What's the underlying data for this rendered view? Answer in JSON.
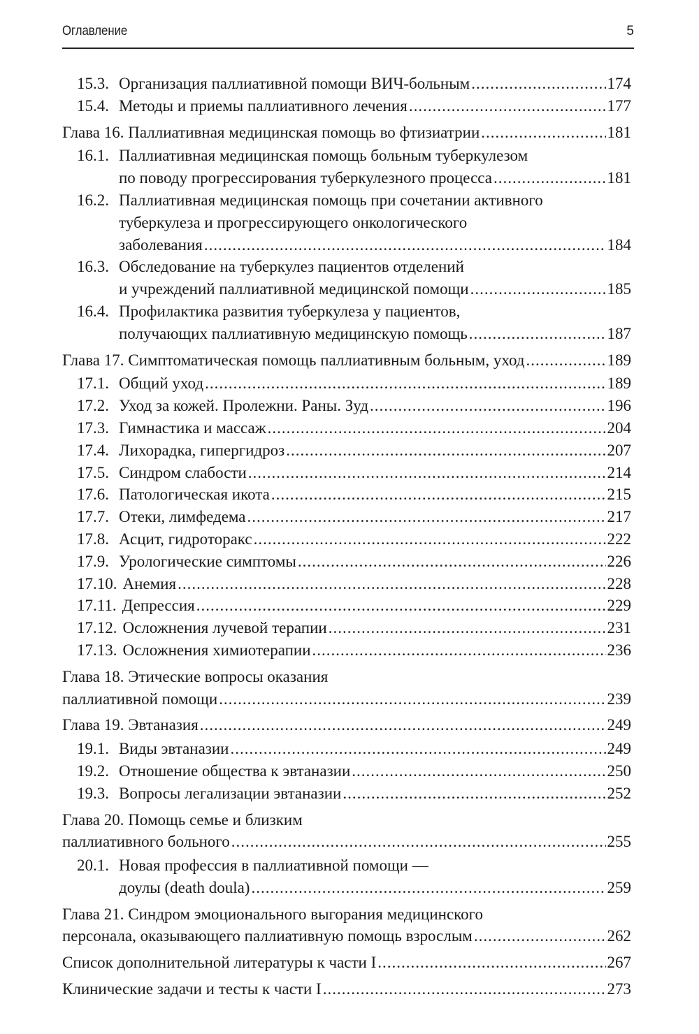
{
  "header": {
    "title": "Оглавление",
    "page_number": "5"
  },
  "entries": [
    {
      "type": "sub",
      "num": "15.3.",
      "lines": [
        "Организация паллиативной помощи ВИЧ-больным"
      ],
      "page": "174"
    },
    {
      "type": "sub",
      "num": "15.4.",
      "lines": [
        "Методы и приемы паллиативного лечения"
      ],
      "page": "177"
    },
    {
      "type": "chapter",
      "lines": [
        "Глава 16. Паллиативная медицинская помощь во фтизиатрии"
      ],
      "page": "181"
    },
    {
      "type": "sub",
      "num": "16.1.",
      "lines": [
        "Паллиативная медицинская помощь больным туберкулезом",
        "по поводу прогрессирования туберкулезного процесса"
      ],
      "page": "181"
    },
    {
      "type": "sub",
      "num": "16.2.",
      "lines": [
        "Паллиативная медицинская помощь при сочетании активного",
        "туберкулеза и прогрессирующего онкологического",
        "заболевания"
      ],
      "page": "184"
    },
    {
      "type": "sub",
      "num": "16.3.",
      "lines": [
        "Обследование на туберкулез пациентов отделений",
        "и учреждений паллиативной медицинской помощи"
      ],
      "page": "185"
    },
    {
      "type": "sub",
      "num": "16.4.",
      "lines": [
        "Профилактика развития туберкулеза у пациентов,",
        "получающих паллиативную медицинскую помощь"
      ],
      "page": "187"
    },
    {
      "type": "chapter",
      "lines": [
        "Глава 17. Симптоматическая помощь паллиативным больным, уход"
      ],
      "page": "189"
    },
    {
      "type": "sub",
      "num": "17.1.",
      "lines": [
        "Общий уход"
      ],
      "page": "189"
    },
    {
      "type": "sub",
      "num": "17.2.",
      "lines": [
        "Уход за кожей. Пролежни. Раны. Зуд"
      ],
      "page": "196"
    },
    {
      "type": "sub",
      "num": "17.3.",
      "lines": [
        "Гимнастика и массаж"
      ],
      "page": "204"
    },
    {
      "type": "sub",
      "num": "17.4.",
      "lines": [
        "Лихорадка, гипергидроз"
      ],
      "page": "207"
    },
    {
      "type": "sub",
      "num": "17.5.",
      "lines": [
        "Синдром слабости"
      ],
      "page": "214"
    },
    {
      "type": "sub",
      "num": "17.6.",
      "lines": [
        "Патологическая икота"
      ],
      "page": "215"
    },
    {
      "type": "sub",
      "num": "17.7.",
      "lines": [
        "Отеки, лимфедема"
      ],
      "page": "217"
    },
    {
      "type": "sub",
      "num": "17.8.",
      "lines": [
        "Асцит, гидроторакс"
      ],
      "page": "222"
    },
    {
      "type": "sub",
      "num": "17.9.",
      "lines": [
        "Урологические симптомы"
      ],
      "page": "226"
    },
    {
      "type": "sub",
      "num": "17.10.",
      "lines": [
        "Анемия"
      ],
      "page": "228"
    },
    {
      "type": "sub",
      "num": "17.11.",
      "lines": [
        "Депрессия"
      ],
      "page": "229"
    },
    {
      "type": "sub",
      "num": "17.12.",
      "lines": [
        "Осложнения лучевой терапии"
      ],
      "page": "231"
    },
    {
      "type": "sub",
      "num": "17.13.",
      "lines": [
        "Осложнения химиотерапии"
      ],
      "page": "236"
    },
    {
      "type": "chapter",
      "lines": [
        "Глава 18. Этические вопросы оказания",
        "паллиативной помощи"
      ],
      "page": "239"
    },
    {
      "type": "chapter",
      "lines": [
        "Глава 19. Эвтаназия"
      ],
      "page": "249"
    },
    {
      "type": "sub",
      "num": "19.1.",
      "lines": [
        "Виды эвтаназии"
      ],
      "page": "249"
    },
    {
      "type": "sub",
      "num": "19.2.",
      "lines": [
        "Отношение общества к эвтаназии"
      ],
      "page": "250"
    },
    {
      "type": "sub",
      "num": "19.3.",
      "lines": [
        "Вопросы легализации эвтаназии"
      ],
      "page": "252"
    },
    {
      "type": "chapter",
      "lines": [
        "Глава 20. Помощь семье и близким",
        "паллиативного больного"
      ],
      "page": "255"
    },
    {
      "type": "sub",
      "num": "20.1.",
      "lines": [
        "Новая профессия в паллиативной помощи —",
        "доулы (death doula)"
      ],
      "page": "259"
    },
    {
      "type": "chapter",
      "lines": [
        "Глава 21. Синдром эмоционального выгорания медицинского",
        "персонала, оказывающего паллиативную помощь взрослым"
      ],
      "page": "262"
    },
    {
      "type": "chapter",
      "lines": [
        "Список дополнительной литературы к части I"
      ],
      "page": "267"
    },
    {
      "type": "chapter",
      "lines": [
        "Клинические задачи и тесты к части I"
      ],
      "page": "273"
    }
  ]
}
